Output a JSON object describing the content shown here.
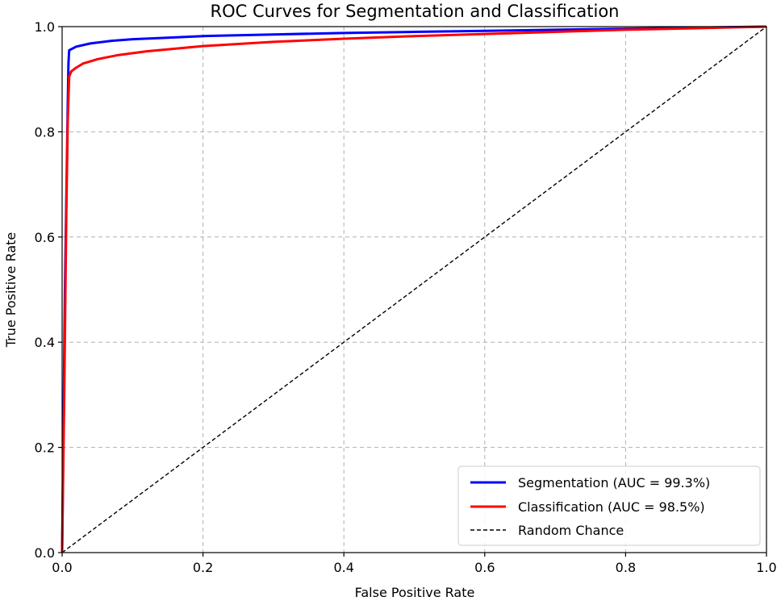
{
  "chart_data": {
    "type": "line",
    "title": "ROC Curves for Segmentation and Classification",
    "xlabel": "False Positive Rate",
    "ylabel": "True Positive Rate",
    "xlim": [
      0.0,
      1.0
    ],
    "ylim": [
      0.0,
      1.0
    ],
    "grid": true,
    "legend_position": "bottom-right",
    "xticks": [
      0.0,
      0.2,
      0.4,
      0.6,
      0.8,
      1.0
    ],
    "yticks": [
      0.0,
      0.2,
      0.4,
      0.6,
      0.8,
      1.0
    ],
    "xtick_labels": [
      "0.0",
      "0.2",
      "0.4",
      "0.6",
      "0.8",
      "1.0"
    ],
    "ytick_labels": [
      "0.0",
      "0.2",
      "0.4",
      "0.6",
      "0.8",
      "1.0"
    ],
    "series": [
      {
        "name": "Segmentation (AUC = 99.3%)",
        "color": "#0000ff",
        "style": "solid",
        "x": [
          0.0,
          0.004,
          0.008,
          0.009,
          0.01,
          0.02,
          0.04,
          0.07,
          0.1,
          0.15,
          0.2,
          0.3,
          0.4,
          0.5,
          0.6,
          0.7,
          0.8,
          0.9,
          1.0
        ],
        "y": [
          0.0,
          0.5,
          0.85,
          0.93,
          0.955,
          0.962,
          0.968,
          0.973,
          0.976,
          0.979,
          0.982,
          0.985,
          0.988,
          0.99,
          0.992,
          0.994,
          0.996,
          0.998,
          1.0
        ]
      },
      {
        "name": "Classification (AUC = 98.5%)",
        "color": "#ff0000",
        "style": "solid",
        "x": [
          0.0,
          0.003,
          0.006,
          0.008,
          0.01,
          0.013,
          0.02,
          0.03,
          0.05,
          0.08,
          0.12,
          0.2,
          0.3,
          0.4,
          0.5,
          0.6,
          0.7,
          0.8,
          0.9,
          1.0
        ],
        "y": [
          0.0,
          0.3,
          0.65,
          0.82,
          0.905,
          0.915,
          0.922,
          0.93,
          0.938,
          0.946,
          0.953,
          0.963,
          0.971,
          0.977,
          0.982,
          0.986,
          0.99,
          0.994,
          0.997,
          1.0
        ]
      },
      {
        "name": "Random Chance",
        "color": "#000000",
        "style": "dashed",
        "x": [
          0.0,
          1.0
        ],
        "y": [
          0.0,
          1.0
        ]
      }
    ]
  }
}
